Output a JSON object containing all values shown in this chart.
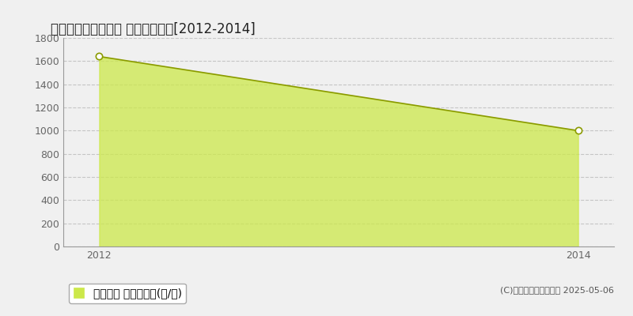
{
  "title": "稲敷郡河内町庄布川 農地価格推移[2012-2014]",
  "x": [
    2012,
    2014
  ],
  "y": [
    1640,
    1000
  ],
  "ylim": [
    0,
    1800
  ],
  "xlim": [
    2011.85,
    2014.15
  ],
  "yticks": [
    0,
    200,
    400,
    600,
    800,
    1000,
    1200,
    1400,
    1600,
    1800
  ],
  "xticks": [
    2012,
    2014
  ],
  "line_color": "#8a9a00",
  "fill_color": "#cce84a",
  "fill_alpha": 0.75,
  "marker_facecolor": "#ffffff",
  "marker_edgecolor": "#8a9a00",
  "marker_size": 6,
  "background_color": "#f0f0f0",
  "plot_bg_color": "#f0f0f0",
  "legend_label": "農地価格 平均坪単価(円/坪)",
  "legend_color": "#cce84a",
  "legend_edge_color": "#aaaaaa",
  "copyright_text": "(C)土地価格ドットコム 2025-05-06",
  "title_fontsize": 12,
  "axis_fontsize": 9,
  "legend_fontsize": 9,
  "copyright_fontsize": 8,
  "grid_color": "#bbbbbb",
  "grid_style": "--",
  "grid_alpha": 0.8,
  "tick_color": "#666666",
  "spine_color": "#999999"
}
